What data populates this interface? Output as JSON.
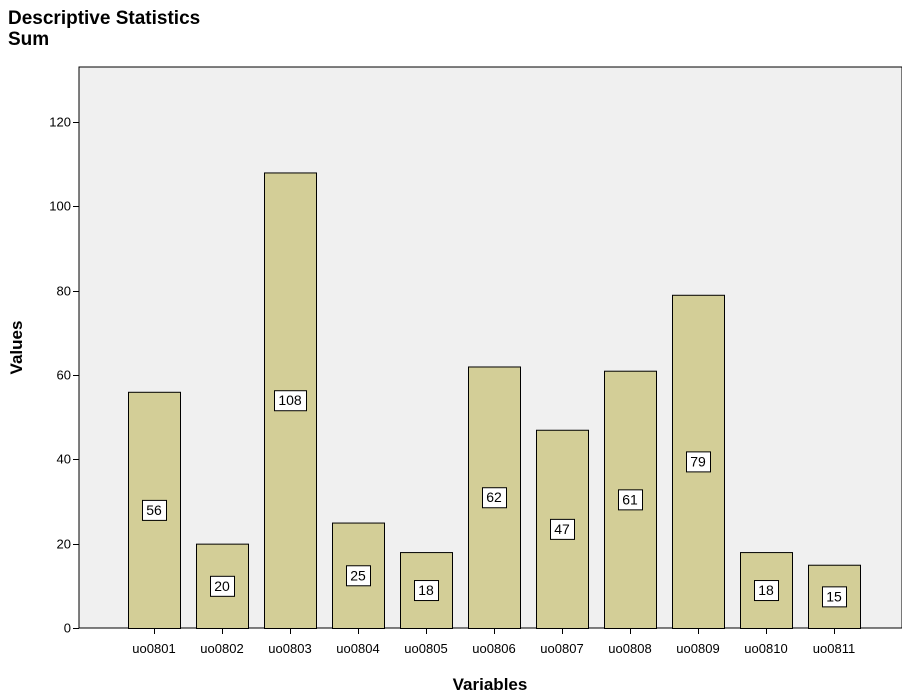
{
  "title": "Descriptive Statistics",
  "subtitle": "Sum",
  "colors": {
    "plot_background": "#f0f0f0",
    "bar_fill": "#d3ce97",
    "bar_stroke": "#000000"
  },
  "chart_data": {
    "type": "bar",
    "title": "Descriptive Statistics",
    "subtitle": "Sum",
    "xlabel": "Variables",
    "ylabel": "Values",
    "categories": [
      "uo0801",
      "uo0802",
      "uo0803",
      "uo0804",
      "uo0805",
      "uo0806",
      "uo0807",
      "uo0808",
      "uo0809",
      "uo0810",
      "uo0811"
    ],
    "values": [
      56,
      20,
      108,
      25,
      18,
      62,
      47,
      61,
      79,
      18,
      15
    ],
    "yticks": [
      0,
      20,
      40,
      60,
      80,
      100,
      120
    ],
    "ylim": [
      0,
      133
    ],
    "grid": false,
    "data_labels": true
  }
}
